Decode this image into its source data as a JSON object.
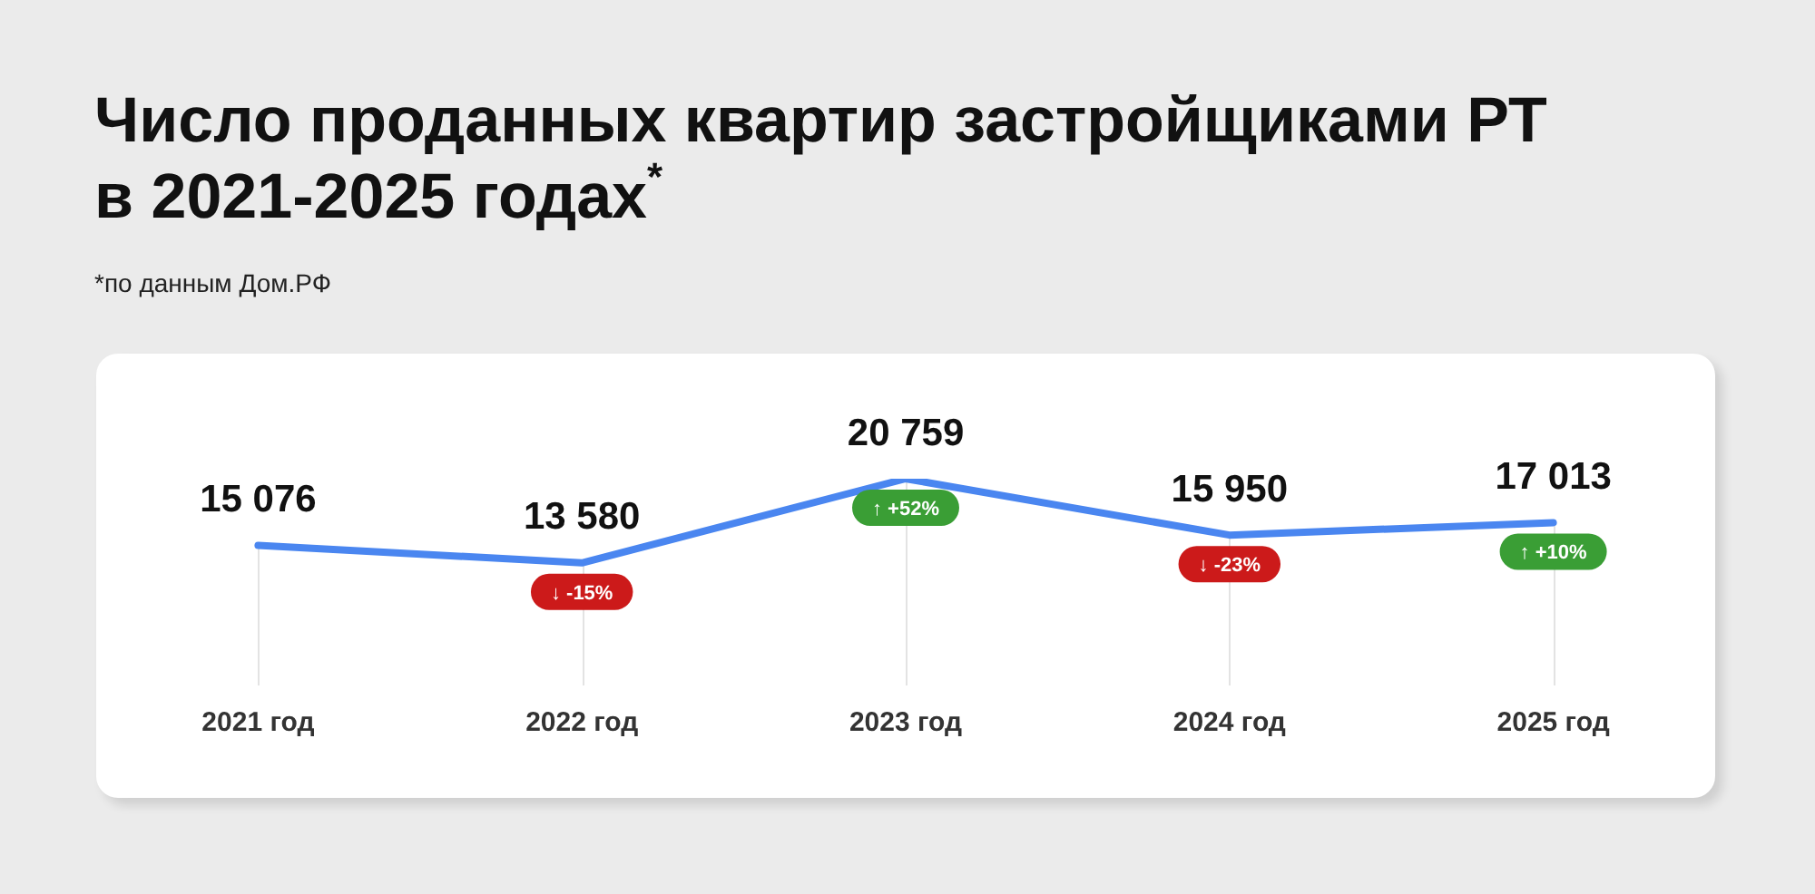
{
  "chart_data": {
    "type": "line",
    "title": "Число проданных квартир застройщиками РТ в 2021-2025 годах$^{*}$",
    "categories": [
      "2021 год",
      "2022 год",
      "2023 год",
      "2024 год",
      "2025 год"
    ],
    "series": [
      {
        "color": "#4a86f0",
        "values": [
          15076,
          13580,
          20759,
          15950,
          17013
        ]
      }
    ],
    "data_labels": true,
    "marker": "none",
    "grid": "x",
    "legend": false,
    "tick_labels": "x",
    "annotations": [
      "*по данным Дом.РФ",
      {
        "text": "↓ -15%",
        "x": "2022 год",
        "y": 13580
      },
      {
        "text": "↑ +52%",
        "x": "2023 год",
        "y": 20759
      },
      {
        "text": "↓ -23%",
        "x": "2024 год",
        "y": 15950
      },
      {
        "text": "↑ +10%",
        "x": "2025 год",
        "y": 17013
      }
    ]
  }
}
